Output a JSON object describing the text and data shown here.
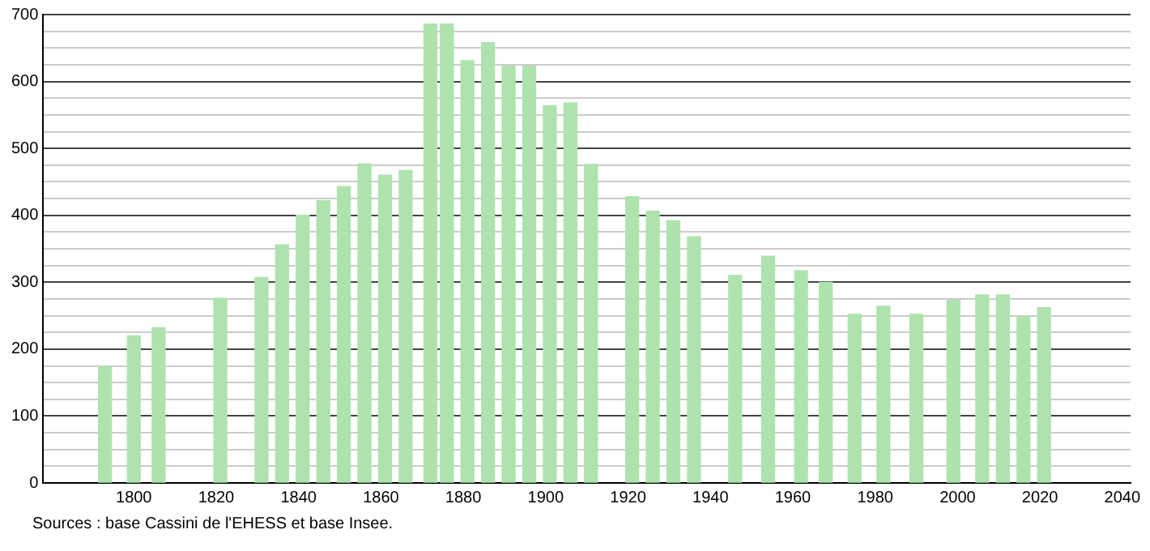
{
  "chart_data": {
    "type": "bar",
    "x": [
      1793,
      1800,
      1806,
      1821,
      1831,
      1836,
      1841,
      1846,
      1851,
      1856,
      1861,
      1866,
      1872,
      1876,
      1881,
      1886,
      1891,
      1896,
      1901,
      1906,
      1911,
      1921,
      1926,
      1931,
      1936,
      1946,
      1954,
      1962,
      1968,
      1975,
      1982,
      1990,
      1999,
      2006,
      2011,
      2016,
      2021
    ],
    "values": [
      174,
      220,
      232,
      276,
      307,
      356,
      400,
      422,
      443,
      477,
      460,
      467,
      686,
      686,
      631,
      658,
      623,
      623,
      564,
      568,
      476,
      428,
      406,
      392,
      368,
      310,
      339,
      317,
      300,
      252,
      264,
      252,
      273,
      281,
      281,
      248,
      262
    ],
    "color": "#aee3ae",
    "xlim": [
      1778,
      2042
    ],
    "xticks": [
      1800,
      1820,
      1840,
      1860,
      1880,
      1900,
      1920,
      1940,
      1960,
      1980,
      2000,
      2020,
      2040
    ],
    "ylim": [
      0,
      700
    ],
    "yticks": [
      0,
      {
        "value": 25,
        "label": null
      },
      {
        "value": 50,
        "label": null
      },
      {
        "value": 75,
        "label": null
      },
      100,
      {
        "value": 125,
        "label": null
      },
      {
        "value": 150,
        "label": null
      },
      {
        "value": 175,
        "label": null
      },
      200,
      {
        "value": 225,
        "label": null
      },
      {
        "value": 250,
        "label": null
      },
      {
        "value": 275,
        "label": null
      },
      300,
      {
        "value": 325,
        "label": null
      },
      {
        "value": 350,
        "label": null
      },
      {
        "value": 375,
        "label": null
      },
      400,
      {
        "value": 425,
        "label": null
      },
      {
        "value": 450,
        "label": null
      },
      {
        "value": 475,
        "label": null
      },
      500,
      {
        "value": 525,
        "label": null
      },
      {
        "value": 550,
        "label": null
      },
      {
        "value": 575,
        "label": null
      },
      600,
      {
        "value": 625,
        "label": null
      },
      {
        "value": 650,
        "label": null
      },
      {
        "value": 675,
        "label": null
      },
      700
    ],
    "grid": "y",
    "annotations": [
      "Sources : base Cassini de l'EHESS et base Insee."
    ]
  }
}
